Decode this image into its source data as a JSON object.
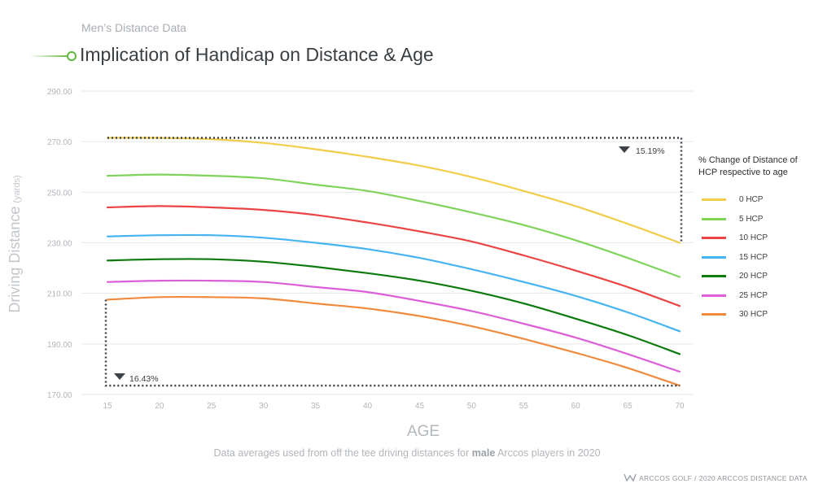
{
  "header": {
    "supertitle": "Men’s Distance Data",
    "title": "Implication of Handicap on Distance & Age"
  },
  "annotations": {
    "top_change": "15.19%",
    "bottom_change": "16.43%"
  },
  "legend": {
    "title_line1": "% Change of Distance of",
    "title_line2": "HCP respective to age"
  },
  "footer": {
    "note_before": "Data averages used from off the tee driving distances for ",
    "note_bold": "male",
    "note_after": " Arccos players in 2020",
    "brand_left": "ARCCOS GOLF",
    "brand_sep": "/",
    "brand_right": "2020 ARCCOS DISTANCE DATA"
  },
  "colors": {
    "accent": "#5fb93c",
    "axis_text": "#b0b5ba",
    "grid": "#e6e8ea",
    "marker": "#3d4248"
  },
  "chart_data": {
    "type": "line",
    "xlabel": "AGE",
    "ylabel_main": "Driving Distance",
    "ylabel_unit": "(yards)",
    "x": [
      15,
      20,
      25,
      30,
      35,
      40,
      45,
      50,
      55,
      60,
      65,
      70
    ],
    "x_tick_labels": [
      "15",
      "20",
      "25",
      "30",
      "35",
      "40",
      "45",
      "50",
      "55",
      "60",
      "65",
      "70"
    ],
    "y_ticks": [
      170,
      190,
      210,
      230,
      250,
      270,
      290
    ],
    "y_tick_labels": [
      "170.00",
      "190.00",
      "210.00",
      "230.00",
      "250.00",
      "270.00",
      "290.00"
    ],
    "ylim": [
      170,
      290
    ],
    "grid": true,
    "legend_position": "right",
    "series": [
      {
        "name": "0 HCP",
        "color": "#f2cd4a",
        "values": [
          271.5,
          271.5,
          271.0,
          269.5,
          267.0,
          264.0,
          260.5,
          256.0,
          250.5,
          244.5,
          237.5,
          230.0
        ]
      },
      {
        "name": "5 HCP",
        "color": "#7fd35a",
        "values": [
          256.5,
          257.0,
          256.5,
          255.5,
          253.0,
          250.5,
          246.5,
          242.0,
          237.0,
          231.0,
          224.0,
          216.5
        ]
      },
      {
        "name": "10 HCP",
        "color": "#ea4444",
        "values": [
          244.0,
          244.5,
          244.0,
          243.0,
          241.0,
          238.0,
          234.5,
          230.5,
          225.0,
          219.0,
          212.5,
          205.0
        ]
      },
      {
        "name": "15 HCP",
        "color": "#45b4f0",
        "values": [
          232.5,
          233.0,
          233.0,
          232.0,
          230.0,
          227.5,
          224.0,
          219.5,
          214.5,
          209.0,
          202.5,
          195.0
        ]
      },
      {
        "name": "20 HCP",
        "color": "#0c7a0c",
        "values": [
          223.0,
          223.5,
          223.5,
          222.5,
          220.5,
          218.0,
          215.0,
          211.0,
          206.0,
          200.0,
          193.5,
          186.0
        ]
      },
      {
        "name": "25 HCP",
        "color": "#dc5fd8",
        "values": [
          214.5,
          215.0,
          215.0,
          214.5,
          212.5,
          210.5,
          207.0,
          203.0,
          198.0,
          192.5,
          186.0,
          179.0
        ]
      },
      {
        "name": "30 HCP",
        "color": "#f08a3c",
        "values": [
          207.5,
          208.5,
          208.5,
          208.0,
          206.0,
          204.0,
          201.0,
          197.0,
          192.0,
          186.5,
          180.5,
          173.5
        ]
      }
    ]
  }
}
